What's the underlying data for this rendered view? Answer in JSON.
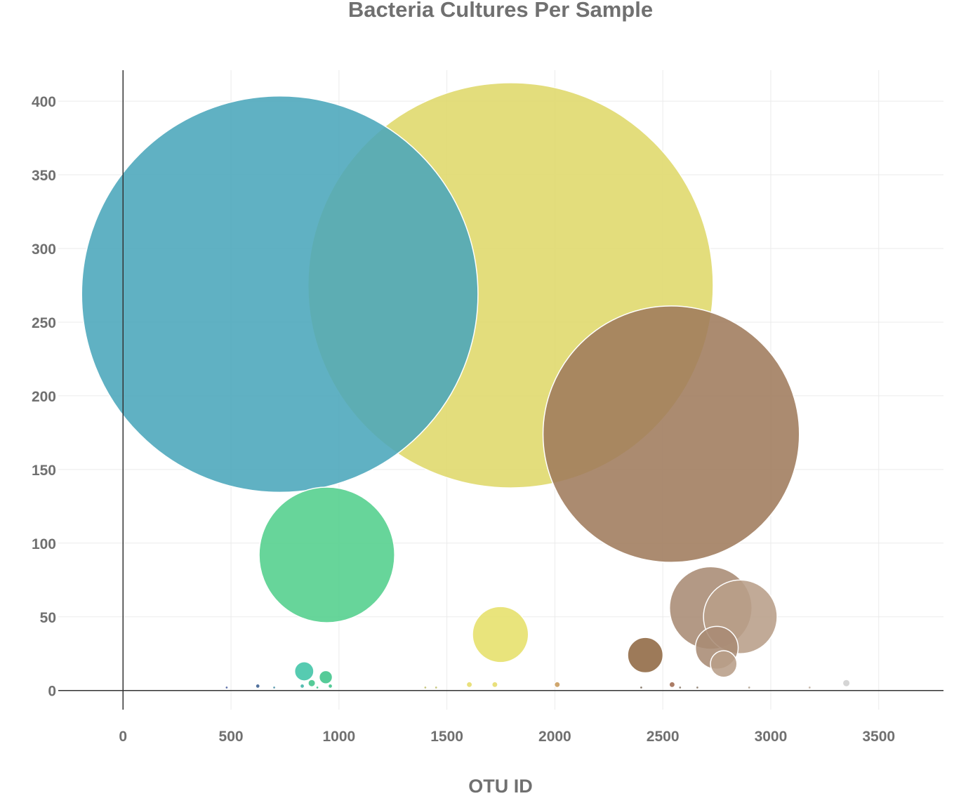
{
  "chart_data": {
    "type": "scatter",
    "title": "Bacteria Cultures Per Sample",
    "xlabel": "OTU ID",
    "ylabel": "",
    "xlim": [
      -300,
      3800
    ],
    "ylim": [
      -13,
      421
    ],
    "x_ticks": [
      0,
      500,
      1000,
      1500,
      2000,
      2500,
      3000,
      3500
    ],
    "y_ticks": [
      0,
      50,
      100,
      150,
      200,
      250,
      300,
      350,
      400
    ],
    "grid": true,
    "legend": "none",
    "points": [
      {
        "x": 726,
        "y": 269,
        "size": 269,
        "color": "#4aa6bb"
      },
      {
        "x": 1795,
        "y": 275,
        "size": 275,
        "color": "#dfd86a"
      },
      {
        "x": 2539,
        "y": 174,
        "size": 174,
        "color": "#9f7b5c"
      },
      {
        "x": 944,
        "y": 92,
        "size": 92,
        "color": "#52cf8c"
      },
      {
        "x": 2722,
        "y": 56,
        "size": 56,
        "color": "#a98b74"
      },
      {
        "x": 2859,
        "y": 50,
        "size": 50,
        "color": "#b89e89"
      },
      {
        "x": 1748,
        "y": 38,
        "size": 38,
        "color": "#e6e06a"
      },
      {
        "x": 2750,
        "y": 29,
        "size": 29,
        "color": "#a98b74"
      },
      {
        "x": 2419,
        "y": 24,
        "size": 24,
        "color": "#8f6842"
      },
      {
        "x": 2782,
        "y": 18,
        "size": 18,
        "color": "#b89e89"
      },
      {
        "x": 839,
        "y": 13,
        "size": 13,
        "color": "#3fc4a6"
      },
      {
        "x": 939,
        "y": 9,
        "size": 9,
        "color": "#3fc48a"
      },
      {
        "x": 874,
        "y": 5,
        "size": 5,
        "color": "#3fc48a"
      },
      {
        "x": 3350,
        "y": 5,
        "size": 5,
        "color": "#cfcfcf"
      },
      {
        "x": 1604,
        "y": 4,
        "size": 4,
        "color": "#e6dc6a"
      },
      {
        "x": 1722,
        "y": 4,
        "size": 4,
        "color": "#e6dc6a"
      },
      {
        "x": 2011,
        "y": 4,
        "size": 4,
        "color": "#c89a5a"
      },
      {
        "x": 2543,
        "y": 4,
        "size": 4,
        "color": "#9f6a50"
      },
      {
        "x": 624,
        "y": 3,
        "size": 3,
        "color": "#3a5f8f"
      },
      {
        "x": 830,
        "y": 3,
        "size": 3,
        "color": "#3fb4a6"
      },
      {
        "x": 960,
        "y": 3,
        "size": 3,
        "color": "#3fc48a"
      },
      {
        "x": 900,
        "y": 2,
        "size": 2,
        "color": "#3fc48a"
      },
      {
        "x": 480,
        "y": 2,
        "size": 2,
        "color": "#4a5f9f"
      },
      {
        "x": 700,
        "y": 2,
        "size": 2,
        "color": "#4a8fa6"
      },
      {
        "x": 1400,
        "y": 2,
        "size": 2,
        "color": "#c0c070"
      },
      {
        "x": 1450,
        "y": 2,
        "size": 2,
        "color": "#c0c070"
      },
      {
        "x": 2400,
        "y": 2,
        "size": 2,
        "color": "#7a6a5a"
      },
      {
        "x": 2580,
        "y": 2,
        "size": 2,
        "color": "#8a7a6a"
      },
      {
        "x": 2660,
        "y": 2,
        "size": 2,
        "color": "#8a7a6a"
      },
      {
        "x": 2900,
        "y": 2,
        "size": 2,
        "color": "#b0a090"
      },
      {
        "x": 3180,
        "y": 2,
        "size": 2,
        "color": "#c0b0a0"
      }
    ]
  }
}
